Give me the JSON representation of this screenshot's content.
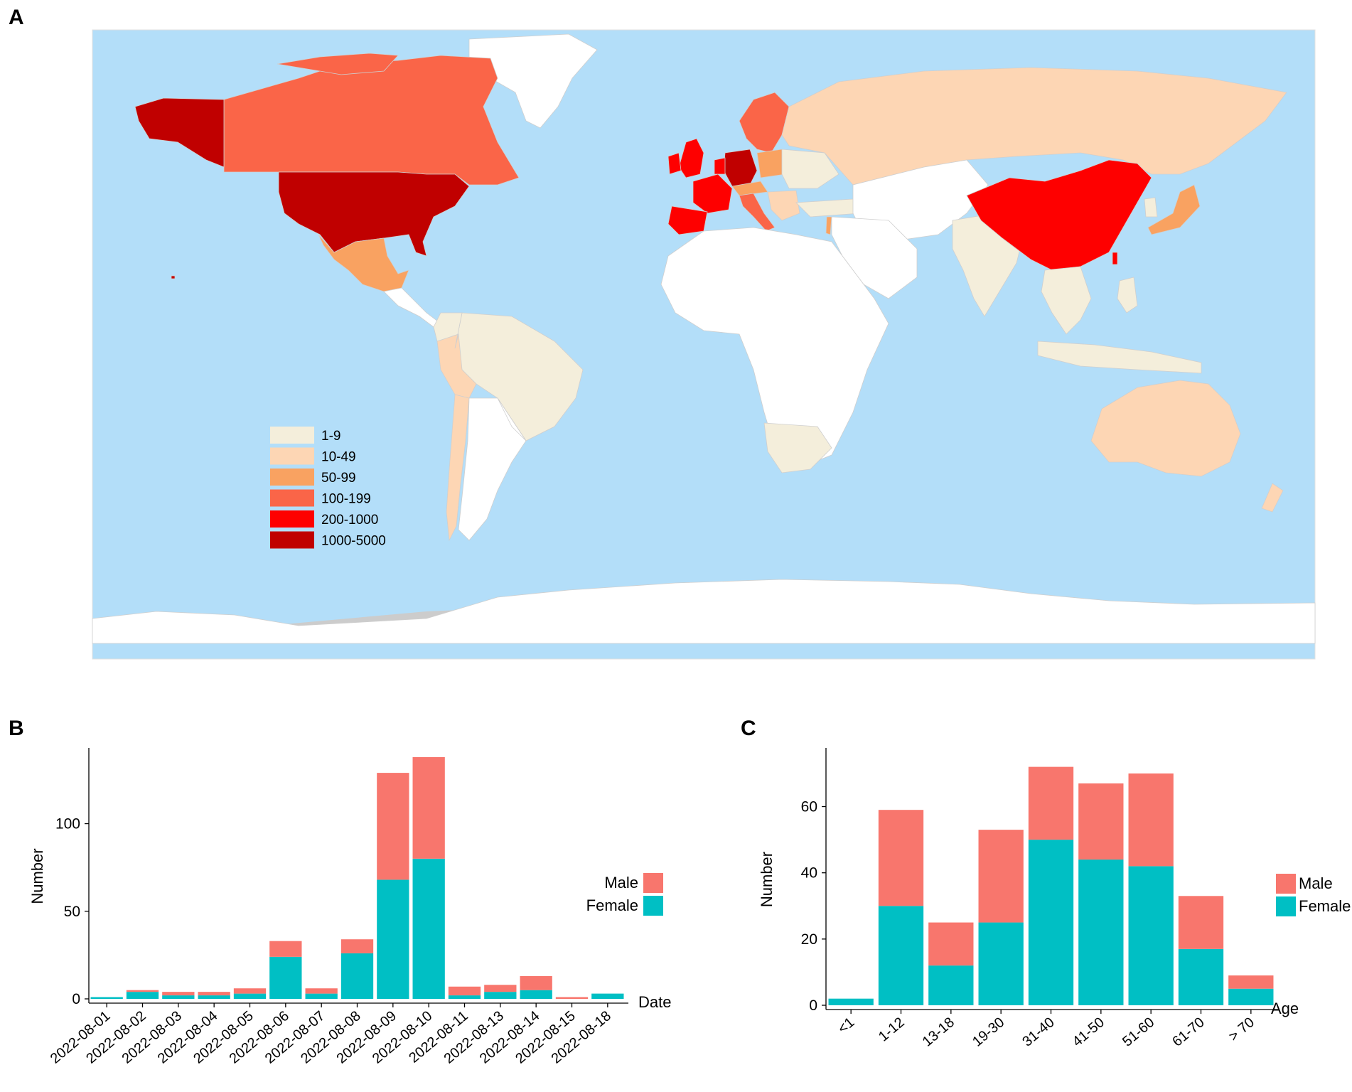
{
  "panels": {
    "a": "A",
    "b": "B",
    "c": "C"
  },
  "colors": {
    "ocean": "#b3def9",
    "land_nodata": "#ffffff",
    "antarctica_shadow": "#cccccc",
    "male": "#f8766d",
    "female": "#00bfc4"
  },
  "map_legend": [
    {
      "label": "1-9",
      "color": "#f4eedb"
    },
    {
      "label": "10-49",
      "color": "#fdd6b4"
    },
    {
      "label": "50-99",
      "color": "#f9a261"
    },
    {
      "label": "100-199",
      "color": "#fa6548"
    },
    {
      "label": "200-1000",
      "color": "#fe0000"
    },
    {
      "label": "1000-5000",
      "color": "#c00000"
    }
  ],
  "chart_data": [
    {
      "type": "bar",
      "stacked": true,
      "panel": "B",
      "xlabel": "Date",
      "ylabel": "Number",
      "ylim": [
        0,
        140
      ],
      "yticks": [
        0,
        50,
        100
      ],
      "legend_position": "right",
      "categories": [
        "2022-08-01",
        "2022-08-02",
        "2022-08-03",
        "2022-08-04",
        "2022-08-05",
        "2022-08-06",
        "2022-08-07",
        "2022-08-08",
        "2022-08-09",
        "2022-08-10",
        "2022-08-11",
        "2022-08-13",
        "2022-08-14",
        "2022-08-15",
        "2022-08-18"
      ],
      "series": [
        {
          "name": "Female",
          "values": [
            1,
            4,
            2,
            2,
            3,
            24,
            3,
            26,
            68,
            80,
            2,
            4,
            5,
            0,
            3
          ]
        },
        {
          "name": "Male",
          "values": [
            0,
            1,
            2,
            2,
            3,
            9,
            3,
            8,
            61,
            58,
            5,
            4,
            8,
            1,
            0
          ]
        }
      ]
    },
    {
      "type": "bar",
      "stacked": true,
      "panel": "C",
      "xlabel": "Age",
      "ylabel": "Number",
      "ylim": [
        0,
        76
      ],
      "yticks": [
        0,
        20,
        40,
        60
      ],
      "legend_position": "right",
      "categories": [
        "<1",
        "1-12",
        "13-18",
        "19-30",
        "31-40",
        "41-50",
        "51-60",
        "61-70",
        "> 70"
      ],
      "series": [
        {
          "name": "Female",
          "values": [
            2,
            30,
            12,
            25,
            50,
            44,
            42,
            17,
            5
          ]
        },
        {
          "name": "Male",
          "values": [
            0,
            29,
            13,
            28,
            22,
            23,
            28,
            16,
            4
          ]
        }
      ]
    }
  ]
}
